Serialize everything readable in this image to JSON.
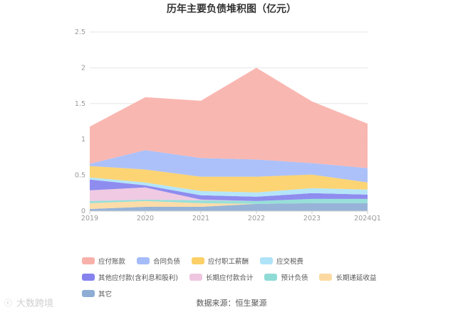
{
  "chart_data": {
    "type": "area",
    "stacked": true,
    "title": "历年主要负债堆积图（亿元）",
    "categories": [
      "2019",
      "2020",
      "2021",
      "2022",
      "2023",
      "2024Q1"
    ],
    "y_ticks": [
      "0",
      "0.5",
      "1",
      "1.5",
      "2",
      "2.5"
    ],
    "ylim": [
      0,
      2.5
    ],
    "grid": true,
    "legend_position": "bottom",
    "series": [
      {
        "name": "其它",
        "color": "#8eadd5",
        "values": [
          0.03,
          0.06,
          0.06,
          0.1,
          0.11,
          0.11
        ]
      },
      {
        "name": "长期递延收益",
        "color": "#fcd9a1",
        "values": [
          0.08,
          0.08,
          0.05,
          0.0,
          0.0,
          0.0
        ]
      },
      {
        "name": "预计负债",
        "color": "#8edcd5",
        "values": [
          0.03,
          0.02,
          0.04,
          0.04,
          0.06,
          0.06
        ]
      },
      {
        "name": "长期应付款合计",
        "color": "#efc6e0",
        "values": [
          0.15,
          0.17,
          0.01,
          0.0,
          0.0,
          0.0
        ]
      },
      {
        "name": "其他应付款(含利息和股利)",
        "color": "#8582ee",
        "values": [
          0.15,
          0.03,
          0.06,
          0.06,
          0.08,
          0.06
        ]
      },
      {
        "name": "应交税费",
        "color": "#aee3f8",
        "values": [
          0.03,
          0.04,
          0.06,
          0.06,
          0.07,
          0.07
        ]
      },
      {
        "name": "应付职工薪酬",
        "color": "#fcd067",
        "values": [
          0.16,
          0.18,
          0.2,
          0.22,
          0.19,
          0.1
        ]
      },
      {
        "name": "合同负债",
        "color": "#a5bcf9",
        "values": [
          0.03,
          0.27,
          0.26,
          0.24,
          0.16,
          0.2
        ]
      },
      {
        "name": "应付账款",
        "color": "#f8b1aa",
        "values": [
          0.52,
          0.74,
          0.8,
          1.28,
          0.86,
          0.62
        ]
      }
    ],
    "legend_order": [
      "应付账款",
      "合同负债",
      "应付职工薪酬",
      "应交税费",
      "其他应付款(含利息和股利)",
      "长期应付款合计",
      "预计负债",
      "长期递延收益",
      "其它"
    ],
    "source": "数据来源：恒生聚源",
    "watermark": "大数跨境"
  }
}
